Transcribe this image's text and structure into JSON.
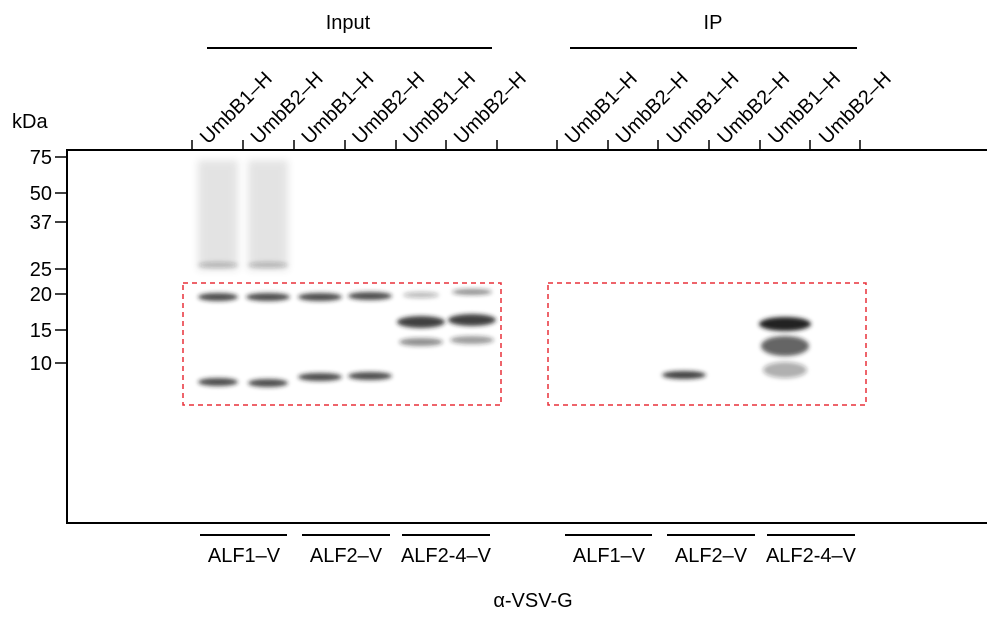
{
  "groups": [
    {
      "label": "Input",
      "lanes": [
        "UmbB1–H",
        "UmbB2–H",
        "UmbB1–H",
        "UmbB2–H",
        "UmbB1–H",
        "UmbB2–H"
      ],
      "baits": [
        "ALF1–V",
        "ALF2–V",
        "ALF2-4–V"
      ]
    },
    {
      "label": "IP",
      "lanes": [
        "UmbB1–H",
        "UmbB2–H",
        "UmbB1–H",
        "UmbB2–H",
        "UmbB1–H",
        "UmbB2–H"
      ],
      "baits": [
        "ALF1–V",
        "ALF2–V",
        "ALF2-4–V"
      ]
    }
  ],
  "marker_unit": "kDa",
  "markers": [
    "75",
    "50",
    "37",
    "25",
    "20",
    "15",
    "10"
  ],
  "antibody": "α-VSV-G"
}
